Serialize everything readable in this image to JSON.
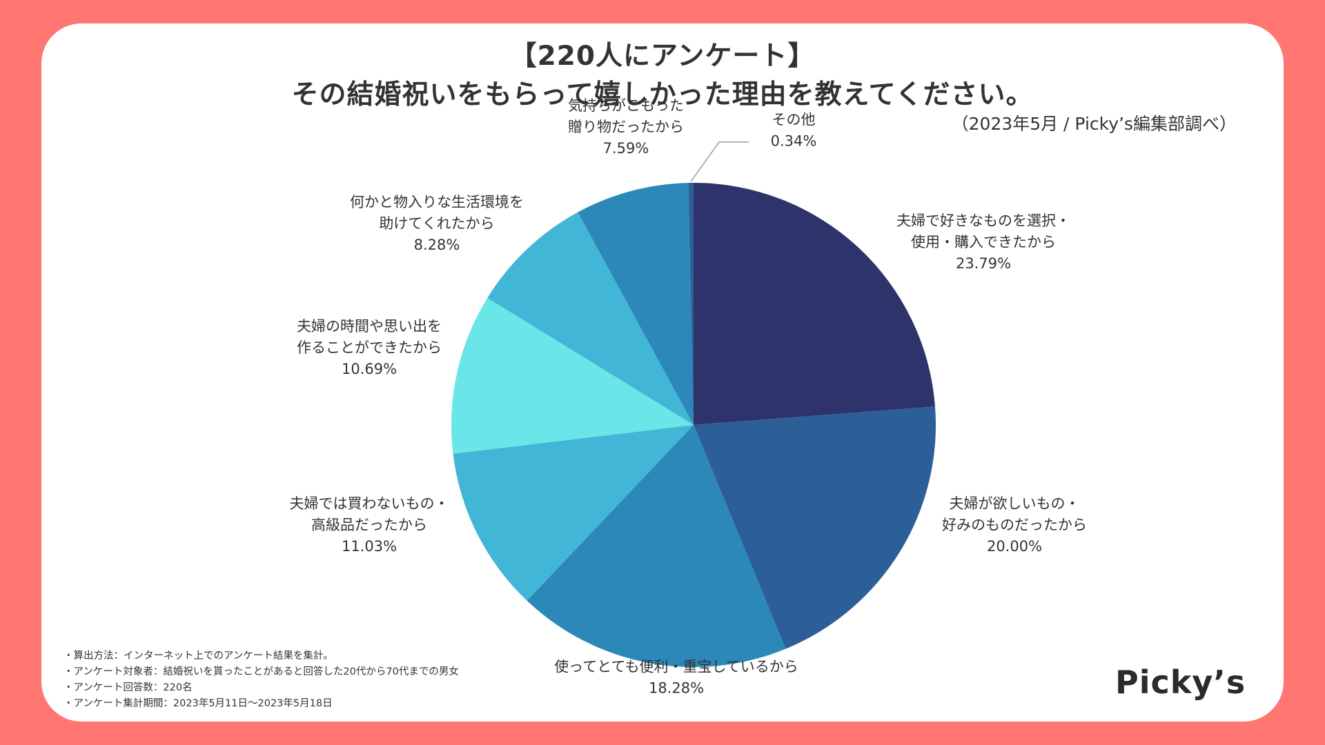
{
  "header": {
    "title_line1": "【220人にアンケート】",
    "title_line2": "その結婚祝いをもらって嬉しかった理由を教えてください。",
    "source": "（2023年5月 / Picky’s編集部調べ）"
  },
  "chart_data": {
    "type": "pie",
    "unit": "%",
    "slices": [
      {
        "label_lines": [
          "夫婦で好きなものを選択・",
          "使用・購入できたから"
        ],
        "value": 23.79,
        "value_label": "23.79%",
        "color": "#2e336b"
      },
      {
        "label_lines": [
          "夫婦が欲しいもの・",
          "好みのものだったから"
        ],
        "value": 20.0,
        "value_label": "20.00%",
        "color": "#2c5e98"
      },
      {
        "label_lines": [
          "使ってとても便利・重宝しているから"
        ],
        "value": 18.28,
        "value_label": "18.28%",
        "color": "#2b88b8"
      },
      {
        "label_lines": [
          "夫婦では買わないもの・",
          "高級品だったから"
        ],
        "value": 11.03,
        "value_label": "11.03%",
        "color": "#42b6d6"
      },
      {
        "label_lines": [
          "夫婦の時間や思い出を",
          "作ることができたから"
        ],
        "value": 10.69,
        "value_label": "10.69%",
        "color": "#6ae5e8"
      },
      {
        "label_lines": [
          "何かと物入りな生活環境を",
          "助けてくれたから"
        ],
        "value": 8.28,
        "value_label": "8.28%",
        "color": "#42b6d6"
      },
      {
        "label_lines": [
          "気持ちがこもった",
          "贈り物だったから"
        ],
        "value": 7.59,
        "value_label": "7.59%",
        "color": "#2b88b8"
      },
      {
        "label_lines": [
          "その他"
        ],
        "value": 0.34,
        "value_label": "0.34%",
        "color": "#2c5e98"
      }
    ]
  },
  "notes": [
    "・算出方法：インターネット上でのアンケート結果を集計。",
    "・アンケート対象者：結婚祝いを貰ったことがあると回答した20代から70代までの男女",
    "・アンケート回答数：220名",
    "・アンケート集計期間：2023年5月11日〜2023年5月18日"
  ],
  "logo": "Picky’s"
}
